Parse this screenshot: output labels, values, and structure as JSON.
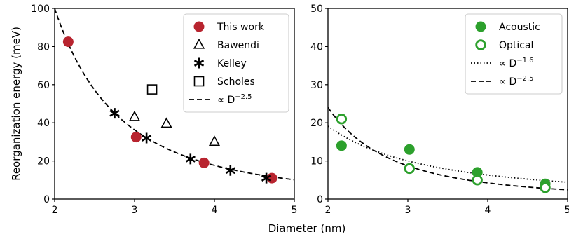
{
  "shared": {
    "xlabel": "Diameter (nm)"
  },
  "chart_data": [
    {
      "type": "scatter",
      "panel": "left",
      "ylabel": "Reorganization energy (meV)",
      "xlim": [
        2,
        5
      ],
      "ylim": [
        0,
        100
      ],
      "xticks": [
        2,
        3,
        4,
        5
      ],
      "yticks": [
        0,
        20,
        40,
        60,
        80,
        100
      ],
      "grid": false,
      "legend_position": "top-right",
      "series": [
        {
          "name": "This work",
          "marker": "circle-filled",
          "color": "#b8242f",
          "x": [
            2.17,
            3.02,
            3.87,
            4.72
          ],
          "y": [
            82.5,
            32.5,
            19,
            11
          ]
        },
        {
          "name": "Bawendi",
          "marker": "triangle-open",
          "color": "#000000",
          "x": [
            3.0,
            3.4,
            4.0
          ],
          "y": [
            43,
            39.5,
            30
          ]
        },
        {
          "name": "Kelley",
          "marker": "asterisk",
          "color": "#000000",
          "x": [
            2.75,
            3.15,
            3.7,
            4.2,
            4.65
          ],
          "y": [
            45,
            32,
            21,
            15,
            11
          ]
        },
        {
          "name": "Scholes",
          "marker": "square-open",
          "color": "#000000",
          "x": [
            3.22
          ],
          "y": [
            57.5
          ]
        }
      ],
      "fits": [
        {
          "name": "∝ D",
          "exp": "−2.5",
          "style": "dashed",
          "power": -2.5,
          "coef": 565.7
        }
      ]
    },
    {
      "type": "scatter",
      "panel": "right",
      "ylabel": "",
      "xlim": [
        2,
        5
      ],
      "ylim": [
        0,
        50
      ],
      "xticks": [
        2,
        3,
        4,
        5
      ],
      "yticks": [
        0,
        10,
        20,
        30,
        40,
        50
      ],
      "grid": false,
      "legend_position": "top-right",
      "series": [
        {
          "name": "Acoustic",
          "marker": "circle-filled",
          "color": "#2ca02c",
          "x": [
            2.17,
            3.02,
            3.87,
            4.72
          ],
          "y": [
            14,
            13,
            7,
            4
          ]
        },
        {
          "name": "Optical",
          "marker": "circle-open",
          "color": "#2ca02c",
          "x": [
            2.17,
            3.02,
            3.87,
            4.72
          ],
          "y": [
            21,
            8,
            5,
            3
          ]
        }
      ],
      "fits": [
        {
          "name": "∝ D",
          "exp": "−1.6",
          "style": "dotted",
          "power": -1.6,
          "coef": 58.0
        },
        {
          "name": "∝ D",
          "exp": "−2.5",
          "style": "dashed",
          "power": -2.5,
          "coef": 135.8
        }
      ]
    }
  ]
}
